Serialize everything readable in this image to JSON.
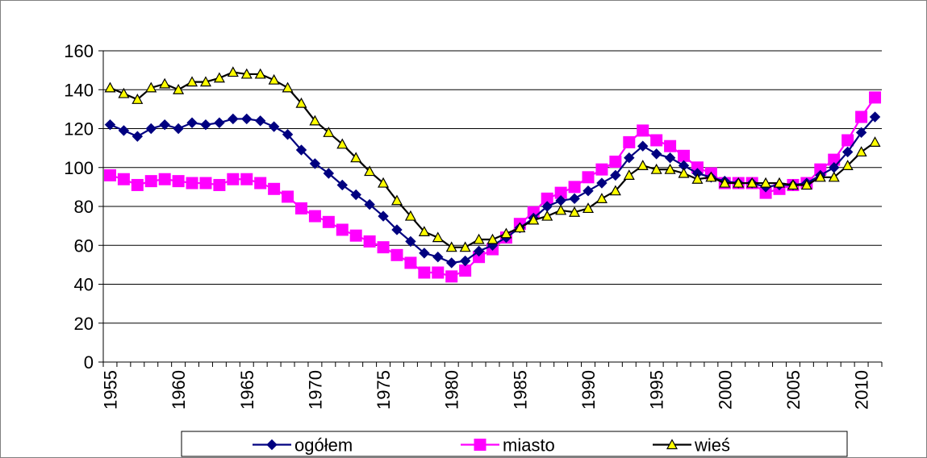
{
  "chart_data": {
    "type": "line",
    "title": "",
    "xlabel": "",
    "ylabel": "",
    "ylim": [
      0,
      160
    ],
    "yticks": [
      0,
      20,
      40,
      60,
      80,
      100,
      120,
      140,
      160
    ],
    "xlim": [
      1955,
      2011
    ],
    "xticks": [
      1955,
      1960,
      1965,
      1970,
      1975,
      1980,
      1985,
      1990,
      1995,
      2000,
      2005,
      2010
    ],
    "grid": "horizontal",
    "legend_position": "bottom",
    "x": [
      1955,
      1956,
      1957,
      1958,
      1959,
      1960,
      1961,
      1962,
      1963,
      1964,
      1965,
      1966,
      1967,
      1968,
      1969,
      1970,
      1971,
      1972,
      1973,
      1974,
      1975,
      1976,
      1977,
      1978,
      1979,
      1980,
      1981,
      1982,
      1983,
      1984,
      1985,
      1986,
      1987,
      1988,
      1989,
      1990,
      1991,
      1992,
      1993,
      1994,
      1995,
      1996,
      1997,
      1998,
      1999,
      2000,
      2001,
      2002,
      2003,
      2004,
      2005,
      2006,
      2007,
      2008,
      2009,
      2010,
      2011
    ],
    "series": [
      {
        "name": "ogółem",
        "color": "#000080",
        "marker": "diamond",
        "values": [
          122,
          119,
          116,
          120,
          122,
          120,
          123,
          122,
          123,
          125,
          125,
          124,
          121,
          117,
          109,
          102,
          97,
          91,
          86,
          81,
          75,
          68,
          62,
          56,
          54,
          51,
          52,
          57,
          60,
          64,
          69,
          74,
          80,
          83,
          84,
          88,
          92,
          96,
          105,
          111,
          107,
          105,
          101,
          97,
          95,
          93,
          92,
          92,
          90,
          91,
          91,
          92,
          96,
          100,
          108,
          118,
          126
        ]
      },
      {
        "name": "miasto",
        "color": "#ff00ff",
        "marker": "square",
        "values": [
          96,
          94,
          91,
          93,
          94,
          93,
          92,
          92,
          91,
          94,
          94,
          92,
          89,
          85,
          79,
          75,
          72,
          68,
          65,
          62,
          59,
          55,
          51,
          46,
          46,
          44,
          47,
          54,
          58,
          64,
          71,
          77,
          84,
          87,
          90,
          95,
          99,
          103,
          113,
          119,
          114,
          111,
          106,
          100,
          97,
          92,
          92,
          92,
          87,
          89,
          91,
          92,
          99,
          104,
          114,
          126,
          136
        ]
      },
      {
        "name": "wieś",
        "color": "#ffff00",
        "marker": "triangle",
        "values": [
          141,
          138,
          135,
          141,
          143,
          140,
          144,
          144,
          146,
          149,
          148,
          148,
          145,
          141,
          133,
          124,
          118,
          112,
          105,
          98,
          92,
          83,
          75,
          67,
          64,
          59,
          59,
          63,
          63,
          66,
          69,
          73,
          75,
          78,
          77,
          79,
          84,
          88,
          96,
          101,
          99,
          99,
          97,
          94,
          95,
          92,
          92,
          92,
          92,
          92,
          91,
          91,
          95,
          95,
          101,
          108,
          113
        ]
      }
    ]
  }
}
